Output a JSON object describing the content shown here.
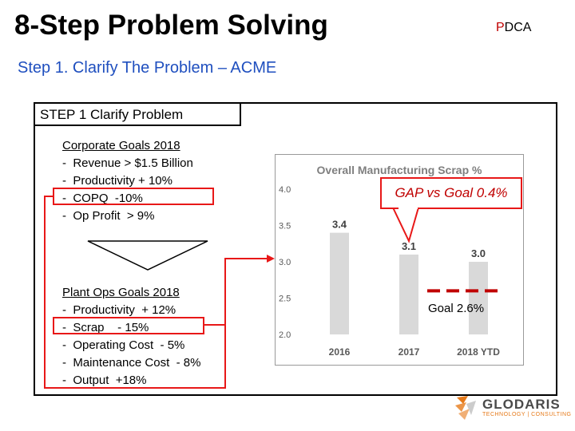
{
  "header": {
    "title": "8-Step Problem Solving",
    "tag_first": "P",
    "tag_rest": "DCA",
    "subtitle": "Step 1. Clarify The Problem – ACME"
  },
  "step_label": "STEP 1   Clarify Problem",
  "corporate_goals": {
    "heading": "Corporate Goals 2018",
    "items": [
      "-  Revenue > $1.5 Billion",
      "-  Productivity + 10%",
      "-  COPQ  -10%",
      "-  Op Profit  > 9%"
    ]
  },
  "plant_goals": {
    "heading": "Plant  Ops Goals 2018",
    "items": [
      "-  Productivity  + 12%",
      "-  Scrap    - 15%",
      "-  Operating Cost  - 5%",
      "-  Maintenance Cost  - 8%",
      "-  Output  +18%"
    ]
  },
  "callouts": {
    "gap": "GAP vs Goal 0.4%",
    "goal": "Goal 2.6%"
  },
  "chart_data": {
    "type": "bar",
    "title": "Overall Manufacturing Scrap %",
    "categories": [
      "2016",
      "2017",
      "2018  YTD"
    ],
    "values": [
      3.4,
      3.1,
      3.0
    ],
    "data_labels": [
      "3.4",
      "3.1",
      "3.0"
    ],
    "ylim": [
      2.0,
      4.0
    ],
    "yticks": [
      "2.0",
      "2.5",
      "3.0",
      "3.5",
      "4.0"
    ],
    "goal_line": 2.6,
    "bar_color": "#d9d9d9",
    "goal_color": "#c00000"
  },
  "logo": {
    "name": "GLODARIS",
    "tagline": "TECHNOLOGY | CONSULTING"
  },
  "colors": {
    "subtitle": "#1f4fbf",
    "highlight": "#e81818"
  }
}
